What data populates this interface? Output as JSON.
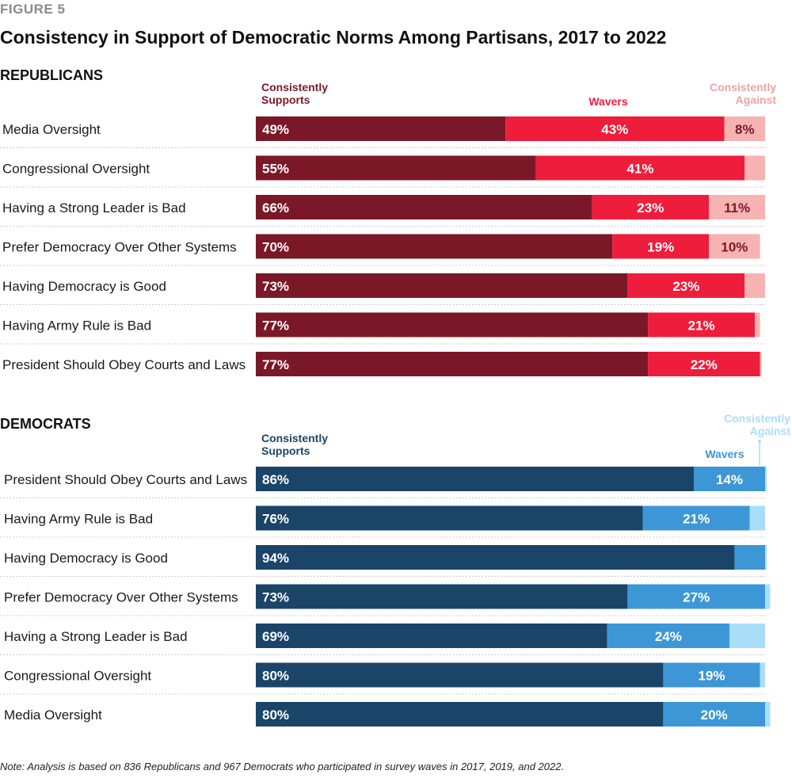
{
  "figure_label": "FIGURE 5",
  "title": "Consistency in Support of Democratic Norms Among Partisans, 2017 to 2022",
  "note": "Note: Analysis is based on 836 Republicans and 967 Democrats who participated in survey waves in 2017, 2019, and 2022.",
  "chart_data": [
    {
      "type": "bar",
      "orientation": "horizontal-stacked",
      "title": "REPUBLICANS",
      "categories": [
        "Media Oversight",
        "Congressional Oversight",
        "Having a Strong Leader is Bad",
        "Prefer Democracy Over Other Systems",
        "Having Democracy is Good",
        "Having Army Rule is Bad",
        "President Should Obey Courts and Laws"
      ],
      "series": [
        {
          "name": "Consistently Supports",
          "header": [
            "Consistently",
            "Supports"
          ],
          "color": "#7b1828",
          "text_color": "#ffffff",
          "values": [
            49,
            55,
            66,
            70,
            73,
            77,
            77
          ],
          "labels": [
            "49%",
            "55%",
            "66%",
            "70%",
            "73%",
            "77%",
            "77%"
          ]
        },
        {
          "name": "Wavers",
          "header": [
            "Wavers"
          ],
          "color": "#ee1d3b",
          "text_color": "#ffffff",
          "values": [
            43,
            41,
            23,
            19,
            23,
            21,
            22
          ],
          "labels": [
            "43%",
            "41%",
            "23%",
            "19%",
            "23%",
            "21%",
            "22%"
          ]
        },
        {
          "name": "Consistently Against",
          "header": [
            "Consistently",
            "Against"
          ],
          "color": "#f6b3b2",
          "text_color": "#7b1828",
          "values": [
            8,
            4,
            11,
            10,
            4,
            1,
            0.3
          ],
          "labels": [
            "8%",
            "",
            "11%",
            "10%",
            "",
            "",
            ""
          ]
        }
      ],
      "header_colors": [
        "#7b1828",
        "#ee1d3b",
        "#f1a3a3"
      ],
      "xlim": [
        0,
        100
      ]
    },
    {
      "type": "bar",
      "orientation": "horizontal-stacked",
      "title": "DEMOCRATS",
      "categories": [
        "President Should Obey Courts and Laws",
        "Having Army Rule is Bad",
        "Having Democracy is Good",
        "Prefer Democracy Over Other Systems",
        "Having a Strong Leader is Bad",
        "Congressional Oversight",
        "Media Oversight"
      ],
      "series": [
        {
          "name": "Consistently Supports",
          "header": [
            "Consistently",
            "Supports"
          ],
          "color": "#1a4468",
          "text_color": "#ffffff",
          "values": [
            86,
            76,
            94,
            73,
            69,
            80,
            80
          ],
          "labels": [
            "86%",
            "76%",
            "94%",
            "73%",
            "69%",
            "80%",
            "80%"
          ]
        },
        {
          "name": "Wavers",
          "header": [
            "Wavers"
          ],
          "color": "#3d97d6",
          "text_color": "#ffffff",
          "values": [
            14,
            21,
            6,
            27,
            24,
            19,
            20
          ],
          "labels": [
            "14%",
            "21%",
            "",
            "27%",
            "24%",
            "19%",
            "20%"
          ]
        },
        {
          "name": "Consistently Against",
          "header": [
            "Consistently",
            "Against"
          ],
          "color": "#a9defa",
          "text_color": "#1a4468",
          "values": [
            0.3,
            3,
            0.3,
            1,
            7,
            1,
            1
          ],
          "labels": [
            "",
            "",
            "",
            "",
            "",
            "",
            ""
          ]
        }
      ],
      "header_colors": [
        "#1a4468",
        "#3d97d6",
        "#a9defa"
      ],
      "xlim": [
        0,
        100
      ]
    }
  ]
}
